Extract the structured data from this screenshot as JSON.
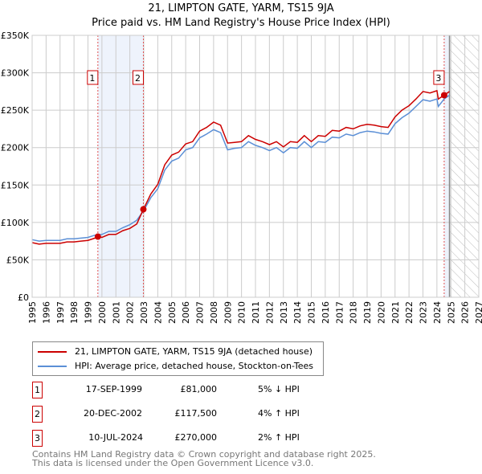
{
  "chart_data": {
    "type": "line",
    "title": "21, LIMPTON GATE, YARM, TS15 9JA",
    "subtitle": "Price paid vs. HM Land Registry's House Price Index (HPI)",
    "xlim": [
      1995,
      2027
    ],
    "ylim": [
      0,
      350000
    ],
    "x_ticks": [
      "1995",
      "1996",
      "1997",
      "1998",
      "1999",
      "2000",
      "2001",
      "2002",
      "2003",
      "2004",
      "2005",
      "2006",
      "2007",
      "2008",
      "2009",
      "2010",
      "2011",
      "2012",
      "2013",
      "2014",
      "2015",
      "2016",
      "2017",
      "2018",
      "2019",
      "2020",
      "2021",
      "2022",
      "2023",
      "2024",
      "2025",
      "2026",
      "2027"
    ],
    "y_ticks": [
      {
        "v": 0,
        "label": "£0"
      },
      {
        "v": 50000,
        "label": "£50K"
      },
      {
        "v": 100000,
        "label": "£100K"
      },
      {
        "v": 150000,
        "label": "£150K"
      },
      {
        "v": 200000,
        "label": "£200K"
      },
      {
        "v": 250000,
        "label": "£250K"
      },
      {
        "v": 300000,
        "label": "£300K"
      },
      {
        "v": 350000,
        "label": "£350K"
      }
    ],
    "grid": true,
    "shaded_periods": [
      [
        1999.71,
        2002.97
      ],
      [
        2024.52,
        2024.9
      ]
    ],
    "forecast_hatch_from": 2024.9,
    "series": [
      {
        "name": "21, LIMPTON GATE, YARM, TS15 9JA (detached house)",
        "color": "#cc0000",
        "x": [
          1995,
          1995.5,
          1996,
          1996.5,
          1997,
          1997.5,
          1998,
          1998.5,
          1999,
          1999.5,
          1999.71,
          2000,
          2000.5,
          2001,
          2001.5,
          2002,
          2002.5,
          2002.97,
          2003.5,
          2004,
          2004.5,
          2005,
          2005.5,
          2006,
          2006.5,
          2007,
          2007.5,
          2008,
          2008.5,
          2009,
          2009.5,
          2010,
          2010.5,
          2011,
          2011.5,
          2012,
          2012.5,
          2013,
          2013.5,
          2014,
          2014.5,
          2015,
          2015.5,
          2016,
          2016.5,
          2017,
          2017.5,
          2018,
          2018.5,
          2019,
          2019.5,
          2020,
          2020.5,
          2021,
          2021.5,
          2022,
          2022.5,
          2023,
          2023.5,
          2024,
          2024.1,
          2024.52,
          2024.9
        ],
        "y": [
          73000,
          71000,
          72000,
          72000,
          72000,
          74000,
          74000,
          75000,
          76000,
          79000,
          81000,
          80000,
          84000,
          84000,
          89000,
          92000,
          98000,
          117500,
          138000,
          151000,
          177000,
          190000,
          194000,
          205000,
          208000,
          222000,
          227000,
          234000,
          230000,
          206000,
          207000,
          208000,
          216000,
          211000,
          208000,
          204000,
          208000,
          201000,
          208000,
          207000,
          216000,
          208000,
          216000,
          215000,
          223000,
          222000,
          227000,
          225000,
          229000,
          231000,
          230000,
          228000,
          227000,
          241000,
          250000,
          256000,
          265000,
          275000,
          273000,
          276000,
          265000,
          270000,
          275000
        ]
      },
      {
        "name": "HPI: Average price, detached house, Stockton-on-Tees",
        "color": "#5b8fd6",
        "x": [
          1995,
          1995.5,
          1996,
          1996.5,
          1997,
          1997.5,
          1998,
          1998.5,
          1999,
          1999.5,
          2000,
          2000.5,
          2001,
          2001.5,
          2002,
          2002.5,
          2003,
          2003.5,
          2004,
          2004.5,
          2005,
          2005.5,
          2006,
          2006.5,
          2007,
          2007.5,
          2008,
          2008.5,
          2009,
          2009.5,
          2010,
          2010.5,
          2011,
          2011.5,
          2012,
          2012.5,
          2013,
          2013.5,
          2014,
          2014.5,
          2015,
          2015.5,
          2016,
          2016.5,
          2017,
          2017.5,
          2018,
          2018.5,
          2019,
          2019.5,
          2020,
          2020.5,
          2021,
          2021.5,
          2022,
          2022.5,
          2023,
          2023.5,
          2024,
          2024.1,
          2024.52,
          2024.9
        ],
        "y": [
          77000,
          75000,
          76000,
          76000,
          76000,
          78000,
          78000,
          79000,
          80000,
          83000,
          84000,
          88000,
          88000,
          93000,
          97000,
          103000,
          116000,
          133000,
          145000,
          170000,
          182000,
          186000,
          197000,
          200000,
          213000,
          218000,
          224000,
          220000,
          197000,
          199000,
          200000,
          208000,
          203000,
          200000,
          196000,
          200000,
          193000,
          200000,
          199000,
          208000,
          200000,
          208000,
          207000,
          214000,
          213000,
          218000,
          216000,
          220000,
          222000,
          221000,
          219000,
          218000,
          232000,
          240000,
          246000,
          255000,
          264000,
          262000,
          265000,
          255000,
          265000,
          270000
        ]
      }
    ],
    "sales": [
      {
        "id": "1",
        "x": 1999.71,
        "y": 81000,
        "date": "17-SEP-1999",
        "price": "£81,000",
        "hpi": "5% ↓ HPI"
      },
      {
        "id": "2",
        "x": 2002.97,
        "y": 117500,
        "date": "20-DEC-2002",
        "price": "£117,500",
        "hpi": "4% ↑ HPI"
      },
      {
        "id": "3",
        "x": 2024.52,
        "y": 270000,
        "date": "10-JUL-2024",
        "price": "£270,000",
        "hpi": "2% ↑ HPI"
      }
    ]
  },
  "footer": {
    "line1": "Contains HM Land Registry data © Crown copyright and database right 2025.",
    "line2": "This data is licensed under the Open Government Licence v3.0."
  }
}
